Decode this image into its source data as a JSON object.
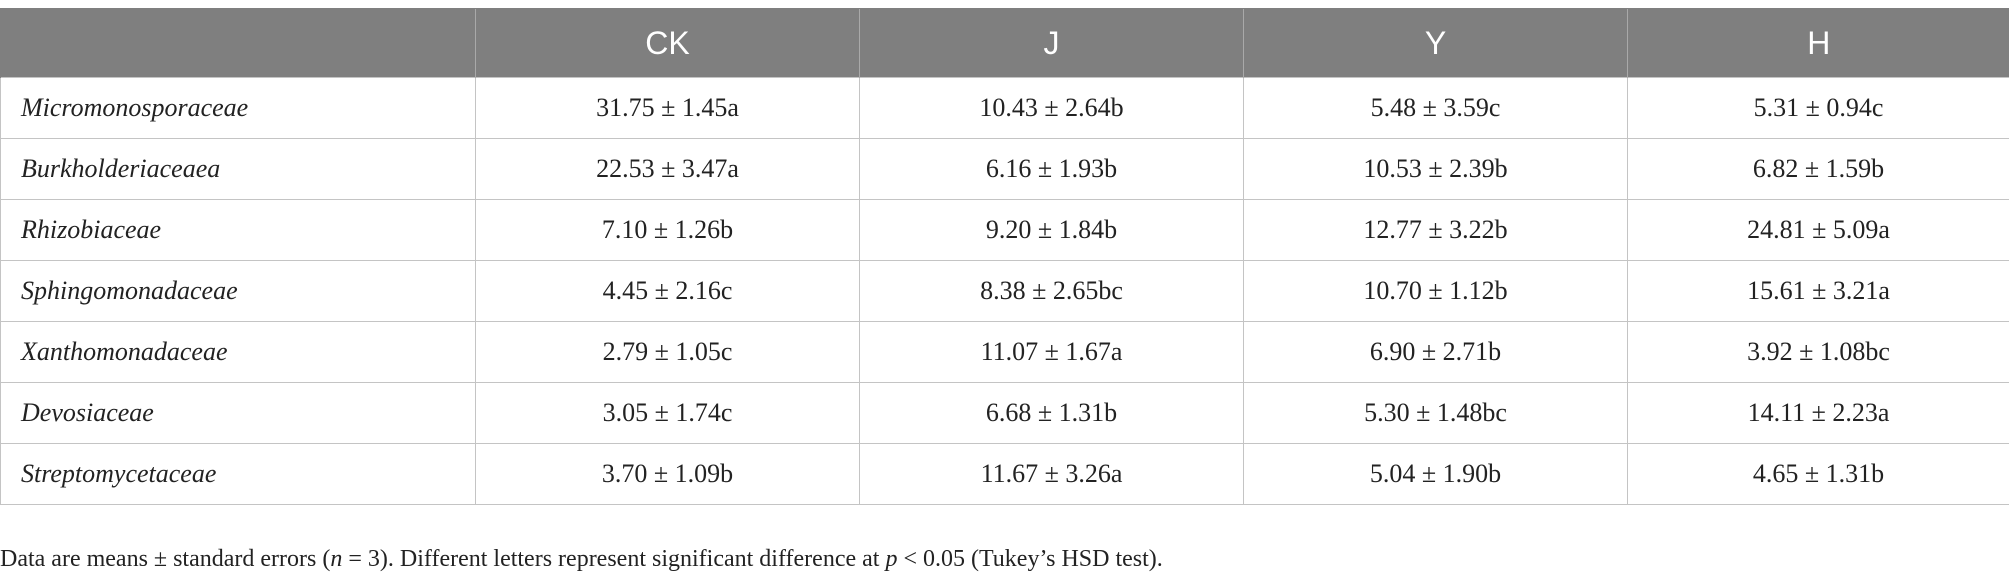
{
  "table": {
    "headers": [
      "",
      "CK",
      "J",
      "Y",
      "H"
    ],
    "rows": [
      {
        "family": "Micromonosporaceae",
        "values": [
          "31.75 ± 1.45a",
          "10.43 ± 2.64b",
          "5.48 ± 3.59c",
          "5.31 ± 0.94c"
        ]
      },
      {
        "family": "Burkholderiaceaea",
        "values": [
          "22.53 ± 3.47a",
          "6.16 ± 1.93b",
          "10.53 ± 2.39b",
          "6.82 ± 1.59b"
        ]
      },
      {
        "family": "Rhizobiaceae",
        "values": [
          "7.10 ± 1.26b",
          "9.20 ± 1.84b",
          "12.77 ± 3.22b",
          "24.81 ± 5.09a"
        ]
      },
      {
        "family": "Sphingomonadaceae",
        "values": [
          "4.45 ± 2.16c",
          "8.38 ± 2.65bc",
          "10.70 ± 1.12b",
          "15.61 ± 3.21a"
        ]
      },
      {
        "family": "Xanthomonadaceae",
        "values": [
          "2.79 ± 1.05c",
          "11.07 ± 1.67a",
          "6.90 ± 2.71b",
          "3.92 ± 1.08bc"
        ]
      },
      {
        "family": "Devosiaceae",
        "values": [
          "3.05 ± 1.74c",
          "6.68 ± 1.31b",
          "5.30 ± 1.48bc",
          "14.11 ± 2.23a"
        ]
      },
      {
        "family": "Streptomycetaceae",
        "values": [
          "3.70 ± 1.09b",
          "11.67 ± 3.26a",
          "5.04 ± 1.90b",
          "4.65 ± 1.31b"
        ]
      }
    ]
  },
  "footnote": {
    "part1": "Data are means ± standard errors (",
    "n_symbol": "n",
    "part2": " = 3). Different letters represent significant difference at ",
    "p_symbol": "p",
    "part3": " < 0.05 (Tukey’s HSD test)."
  }
}
